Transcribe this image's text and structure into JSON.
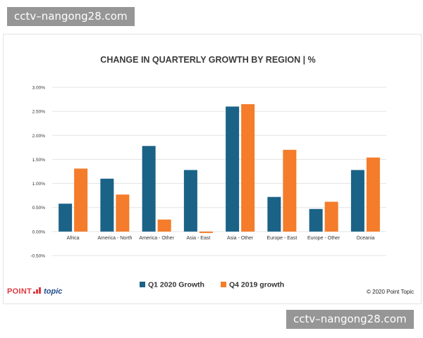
{
  "watermark_top": "cctv–nangong28.com",
  "watermark_bottom": "cctv–nangong28.com",
  "brand": {
    "part1": "POINT",
    "part2": "topic"
  },
  "copyright": "© 2020 Point Topic",
  "colors": {
    "q1": "#1b6287",
    "q4": "#f47c2a",
    "grid": "#e3e3e3",
    "title": "#3a3a3a",
    "axis_text": "#333333"
  },
  "chart_data": {
    "type": "bar",
    "title": "CHANGE IN QUARTERLY GROWTH BY REGION | %",
    "categories": [
      "Africa",
      "America - North",
      "America - Other",
      "Asia - East",
      "Asia - Other",
      "Europe - East",
      "Europe - Other",
      "Oceania"
    ],
    "series": [
      {
        "name": "Q1 2020 Growth",
        "values": [
          0.58,
          1.1,
          1.78,
          1.28,
          2.6,
          0.72,
          0.47,
          1.28
        ]
      },
      {
        "name": "Q4 2019 growth",
        "values": [
          1.31,
          0.77,
          0.25,
          -0.03,
          2.65,
          1.7,
          0.62,
          1.54
        ]
      }
    ],
    "yticks": [
      "3.00%",
      "2.50%",
      "2.00%",
      "1.50%",
      "1.00%",
      "0.50%",
      "0.00%",
      "-0.50%"
    ],
    "ytick_values": [
      3.0,
      2.5,
      2.0,
      1.5,
      1.0,
      0.5,
      0.0,
      -0.5
    ],
    "ylim": [
      -0.5,
      3.0
    ],
    "grid": true,
    "legend_position": "bottom-center"
  }
}
